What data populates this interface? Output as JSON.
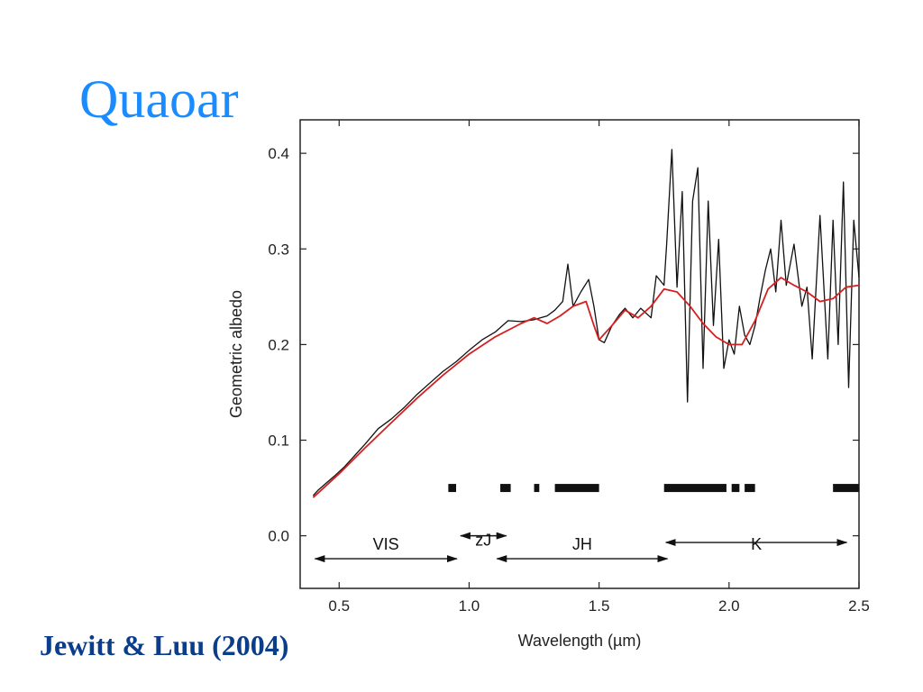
{
  "slide": {
    "title": "Quaoar",
    "citation": "Jewitt & Luu (2004)"
  },
  "colors": {
    "title": "#1a8cff",
    "citation": "#0a3d8a",
    "spectrum": "#111111",
    "smoothed": "#d42020"
  },
  "chart_data": {
    "type": "line",
    "title": "",
    "xlabel": "Wavelength (µm)",
    "ylabel": "Geometric albedo",
    "xlim": [
      0.35,
      2.5
    ],
    "ylim": [
      -0.055,
      0.435
    ],
    "xticks": [
      0.5,
      1.0,
      1.5,
      2.0,
      2.5
    ],
    "xtick_labels": [
      "0.5",
      "1.0",
      "1.5",
      "2.0",
      "2.5"
    ],
    "yticks": [
      0.0,
      0.1,
      0.2,
      0.3,
      0.4
    ],
    "ytick_labels": [
      "0.0",
      "0.1",
      "0.2",
      "0.3",
      "0.4"
    ],
    "grid": false,
    "series": [
      {
        "style": "noisy-black",
        "x": [
          0.4,
          0.42,
          0.45,
          0.48,
          0.52,
          0.56,
          0.6,
          0.65,
          0.7,
          0.75,
          0.8,
          0.85,
          0.9,
          0.95,
          1.0,
          1.05,
          1.1,
          1.15,
          1.2,
          1.25,
          1.3,
          1.33,
          1.36,
          1.38,
          1.4,
          1.43,
          1.46,
          1.48,
          1.5,
          1.52,
          1.55,
          1.58,
          1.6,
          1.63,
          1.66,
          1.7,
          1.72,
          1.75,
          1.76,
          1.78,
          1.8,
          1.82,
          1.84,
          1.86,
          1.88,
          1.9,
          1.92,
          1.94,
          1.96,
          1.98,
          2.0,
          2.02,
          2.04,
          2.06,
          2.08,
          2.1,
          2.12,
          2.14,
          2.16,
          2.18,
          2.2,
          2.22,
          2.25,
          2.28,
          2.3,
          2.32,
          2.35,
          2.38,
          2.4,
          2.42,
          2.44,
          2.46,
          2.48,
          2.5
        ],
        "values": [
          0.042,
          0.048,
          0.055,
          0.062,
          0.072,
          0.084,
          0.096,
          0.112,
          0.122,
          0.134,
          0.148,
          0.16,
          0.172,
          0.182,
          0.194,
          0.205,
          0.213,
          0.225,
          0.224,
          0.226,
          0.23,
          0.236,
          0.245,
          0.284,
          0.24,
          0.255,
          0.268,
          0.24,
          0.205,
          0.202,
          0.22,
          0.232,
          0.238,
          0.228,
          0.238,
          0.228,
          0.272,
          0.262,
          0.305,
          0.404,
          0.26,
          0.36,
          0.14,
          0.35,
          0.385,
          0.175,
          0.35,
          0.22,
          0.31,
          0.175,
          0.205,
          0.19,
          0.24,
          0.21,
          0.2,
          0.22,
          0.25,
          0.278,
          0.3,
          0.255,
          0.33,
          0.262,
          0.305,
          0.24,
          0.26,
          0.185,
          0.335,
          0.185,
          0.33,
          0.2,
          0.37,
          0.155,
          0.33,
          0.27
        ]
      },
      {
        "style": "smoothed-red",
        "x": [
          0.4,
          0.5,
          0.6,
          0.7,
          0.8,
          0.9,
          1.0,
          1.1,
          1.2,
          1.25,
          1.3,
          1.35,
          1.4,
          1.45,
          1.48,
          1.5,
          1.55,
          1.6,
          1.65,
          1.7,
          1.75,
          1.8,
          1.85,
          1.9,
          1.95,
          2.0,
          2.05,
          2.1,
          2.15,
          2.2,
          2.25,
          2.3,
          2.35,
          2.4,
          2.45,
          2.5
        ],
        "values": [
          0.04,
          0.065,
          0.092,
          0.118,
          0.144,
          0.168,
          0.19,
          0.208,
          0.222,
          0.228,
          0.222,
          0.23,
          0.24,
          0.245,
          0.22,
          0.205,
          0.22,
          0.236,
          0.228,
          0.24,
          0.258,
          0.255,
          0.24,
          0.222,
          0.208,
          0.2,
          0.2,
          0.225,
          0.258,
          0.27,
          0.262,
          0.255,
          0.245,
          0.248,
          0.26,
          0.262
        ]
      }
    ],
    "absorption_bars": {
      "y": 0.05,
      "ranges": [
        [
          0.92,
          0.95
        ],
        [
          1.12,
          1.16
        ],
        [
          1.25,
          1.27
        ],
        [
          1.33,
          1.5
        ],
        [
          1.75,
          1.99
        ],
        [
          2.01,
          2.04
        ],
        [
          2.06,
          2.1
        ],
        [
          2.4,
          2.5
        ]
      ]
    },
    "bands": [
      {
        "label": "VIS",
        "x0": 0.4,
        "x1": 0.96,
        "arrow_y": -0.024,
        "label_y": -0.004
      },
      {
        "label": "zJ",
        "x0": 0.96,
        "x1": 1.15,
        "arrow_y": 0.0,
        "label_y": 0.0
      },
      {
        "label": "JH",
        "x0": 1.1,
        "x1": 1.77,
        "arrow_y": -0.024,
        "label_y": -0.004
      },
      {
        "label": "K",
        "x0": 1.75,
        "x1": 2.46,
        "arrow_y": -0.007,
        "label_y": -0.004
      }
    ]
  }
}
